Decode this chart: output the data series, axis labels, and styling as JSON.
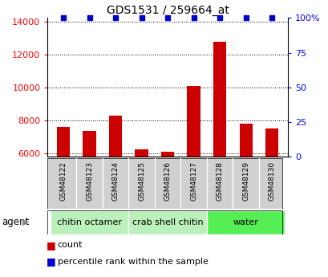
{
  "title": "GDS1531 / 259664_at",
  "samples": [
    "GSM48122",
    "GSM48123",
    "GSM48124",
    "GSM48125",
    "GSM48126",
    "GSM48127",
    "GSM48128",
    "GSM48129",
    "GSM48130"
  ],
  "counts": [
    7600,
    7350,
    8300,
    6250,
    6100,
    10100,
    12750,
    7800,
    7500
  ],
  "percentiles": [
    100,
    100,
    100,
    100,
    100,
    100,
    100,
    100,
    100
  ],
  "ylim_left": [
    5800,
    14200
  ],
  "ylim_right": [
    0,
    100
  ],
  "yticks_left": [
    6000,
    8000,
    10000,
    12000,
    14000
  ],
  "yticks_right": [
    0,
    25,
    50,
    75,
    100
  ],
  "groups": [
    {
      "label": "chitin octamer",
      "indices": [
        0,
        1,
        2
      ],
      "color": "#bbf0bb"
    },
    {
      "label": "crab shell chitin",
      "indices": [
        3,
        4,
        5
      ],
      "color": "#bbf0bb"
    },
    {
      "label": "water",
      "indices": [
        6,
        7,
        8
      ],
      "color": "#55ee55"
    }
  ],
  "bar_color": "#cc0000",
  "percentile_color": "#0000cc",
  "bar_width": 0.5,
  "agent_label": "agent",
  "legend_count_label": "count",
  "legend_percentile_label": "percentile rank within the sample",
  "sample_box_color": "#d0d0d0",
  "group_area_colors": [
    "#bbf0bb",
    "#bbf0bb",
    "#55ee55"
  ]
}
